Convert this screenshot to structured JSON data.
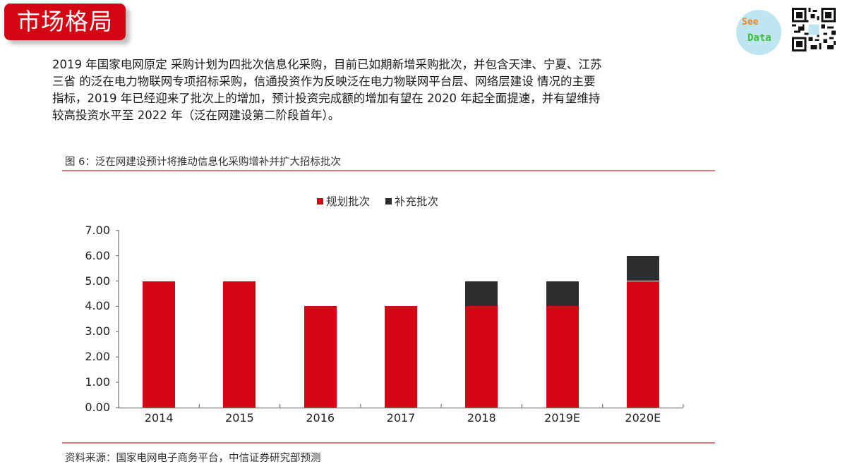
{
  "header": {
    "section_title": "市场格局",
    "logo_text_top": "See",
    "logo_text_bottom": "Data"
  },
  "paragraph": {
    "lines": [
      "2019 年国家电网原定 采购计划为四批次信息化采购，目前已如期新增采购批次，并包含天津、宁夏、江苏",
      "三省 的泛在电力物联网专项招标采购，信通投资作为反映泛在电力物联网平台层、网络层建设 情况的主要",
      "指标，2019 年已经迎来了批次上的增加，预计投资完成额的增加有望在 2020 年起全面提速，并有望维持",
      "较高投资水平至 2022 年（泛在网建设第二阶段首年）。"
    ]
  },
  "figure": {
    "title": "图 6：泛在网建设预计将推动信息化采购增补并扩大招标批次",
    "source": "资料来源：国家电网电子商务平台，中信证券研究部预测"
  },
  "colors": {
    "primary": "#d40613",
    "secondary": "#2d2d2d",
    "rule": "#e0767c"
  },
  "chart_data": {
    "type": "bar",
    "stacked": true,
    "title": "图 6：泛在网建设预计将推动信息化采购增补并扩大招标批次",
    "xlabel": "",
    "ylabel": "",
    "categories": [
      "2014",
      "2015",
      "2016",
      "2017",
      "2018",
      "2019E",
      "2020E"
    ],
    "series": [
      {
        "name": "规划批次",
        "color": "#d40613",
        "values": [
          5,
          5,
          4,
          4,
          4,
          4,
          5
        ]
      },
      {
        "name": "补充批次",
        "color": "#2d2d2d",
        "values": [
          0,
          0,
          0,
          0,
          1,
          1,
          1
        ]
      }
    ],
    "yticks": [
      "0.00",
      "1.00",
      "2.00",
      "3.00",
      "4.00",
      "5.00",
      "6.00",
      "7.00"
    ],
    "ylim": [
      0,
      7
    ],
    "grid": false,
    "legend_position": "top"
  }
}
